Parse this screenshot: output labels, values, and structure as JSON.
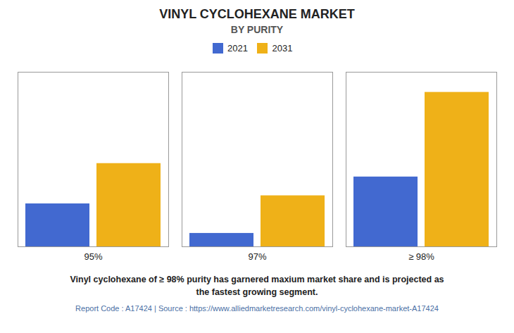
{
  "chart_data": {
    "type": "bar",
    "title": "VINYL CYCLOHEXANE MARKET",
    "subtitle": "BY PURITY",
    "categories": [
      "95%",
      "97%",
      "≥ 98%"
    ],
    "series": [
      {
        "name": "2021",
        "values": [
          3.2,
          1.0,
          5.2
        ]
      },
      {
        "name": "2031",
        "values": [
          6.2,
          3.8,
          11.5
        ]
      }
    ],
    "ylim": [
      0,
      13
    ],
    "yticks": [],
    "tick_labels": "x",
    "grid": false,
    "legend": "top",
    "annotations": [
      "Vinyl cyclohexane of ≥ 98% purity has garnered maxium market share and is projected as\nthe fastest growing segment.",
      "Report Code : A17424  |  Source : https://www.alliedmarketresearch.com/vinyl-cyclohexane-market-A17424"
    ]
  }
}
